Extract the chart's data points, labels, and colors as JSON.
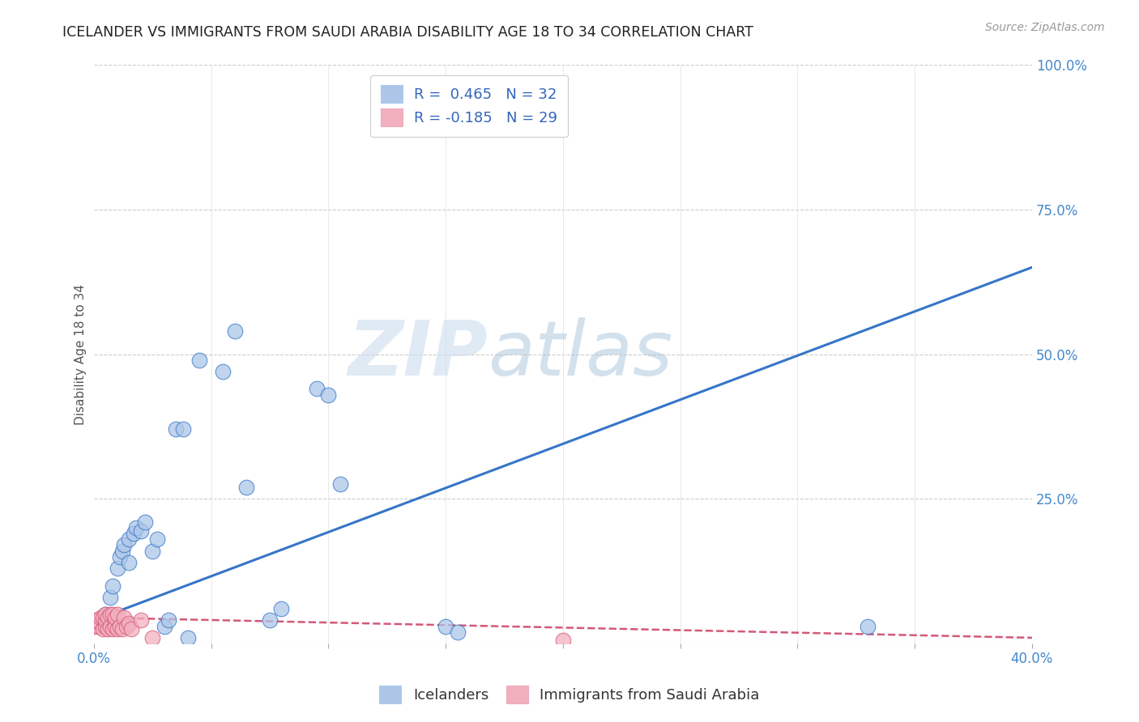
{
  "title": "ICELANDER VS IMMIGRANTS FROM SAUDI ARABIA DISABILITY AGE 18 TO 34 CORRELATION CHART",
  "source": "Source: ZipAtlas.com",
  "ylabel": "Disability Age 18 to 34",
  "xlim": [
    0.0,
    0.4
  ],
  "ylim": [
    0.0,
    1.0
  ],
  "xticks": [
    0.0,
    0.05,
    0.1,
    0.15,
    0.2,
    0.25,
    0.3,
    0.35,
    0.4
  ],
  "yticks": [
    0.0,
    0.25,
    0.5,
    0.75,
    1.0
  ],
  "xtick_labels": [
    "0.0%",
    "",
    "",
    "",
    "",
    "",
    "",
    "",
    "40.0%"
  ],
  "ytick_labels": [
    "",
    "25.0%",
    "50.0%",
    "75.0%",
    "100.0%"
  ],
  "blue_R": 0.465,
  "blue_N": 32,
  "pink_R": -0.185,
  "pink_N": 29,
  "legend1_label": "Icelanders",
  "legend2_label": "Immigrants from Saudi Arabia",
  "blue_color": "#adc6e8",
  "blue_line_color": "#3575c8",
  "pink_color": "#f2b0be",
  "pink_line_color": "#d45878",
  "watermark_zip": "ZIP",
  "watermark_atlas": "atlas",
  "blue_scatter_x": [
    0.005,
    0.007,
    0.008,
    0.01,
    0.011,
    0.012,
    0.013,
    0.015,
    0.015,
    0.017,
    0.018,
    0.02,
    0.022,
    0.025,
    0.027,
    0.03,
    0.032,
    0.035,
    0.038,
    0.04,
    0.045,
    0.055,
    0.06,
    0.065,
    0.075,
    0.08,
    0.095,
    0.1,
    0.105,
    0.15,
    0.155,
    0.33
  ],
  "blue_scatter_y": [
    0.05,
    0.08,
    0.1,
    0.13,
    0.15,
    0.16,
    0.17,
    0.14,
    0.18,
    0.19,
    0.2,
    0.195,
    0.21,
    0.16,
    0.18,
    0.03,
    0.04,
    0.37,
    0.37,
    0.01,
    0.49,
    0.47,
    0.54,
    0.27,
    0.04,
    0.06,
    0.44,
    0.43,
    0.275,
    0.03,
    0.02,
    0.03
  ],
  "pink_scatter_x": [
    0.0,
    0.001,
    0.002,
    0.003,
    0.003,
    0.004,
    0.004,
    0.005,
    0.005,
    0.005,
    0.006,
    0.006,
    0.007,
    0.007,
    0.008,
    0.008,
    0.009,
    0.009,
    0.01,
    0.01,
    0.011,
    0.012,
    0.013,
    0.014,
    0.015,
    0.016,
    0.02,
    0.025,
    0.2
  ],
  "pink_scatter_y": [
    0.03,
    0.04,
    0.03,
    0.035,
    0.045,
    0.025,
    0.045,
    0.03,
    0.04,
    0.05,
    0.025,
    0.045,
    0.03,
    0.05,
    0.025,
    0.05,
    0.03,
    0.045,
    0.025,
    0.05,
    0.03,
    0.025,
    0.045,
    0.03,
    0.035,
    0.025,
    0.04,
    0.01,
    0.005
  ],
  "blue_line_x": [
    0.0,
    0.4
  ],
  "blue_line_y": [
    0.04,
    0.65
  ],
  "pink_line_x": [
    0.0,
    0.4
  ],
  "pink_line_y": [
    0.045,
    0.01
  ]
}
